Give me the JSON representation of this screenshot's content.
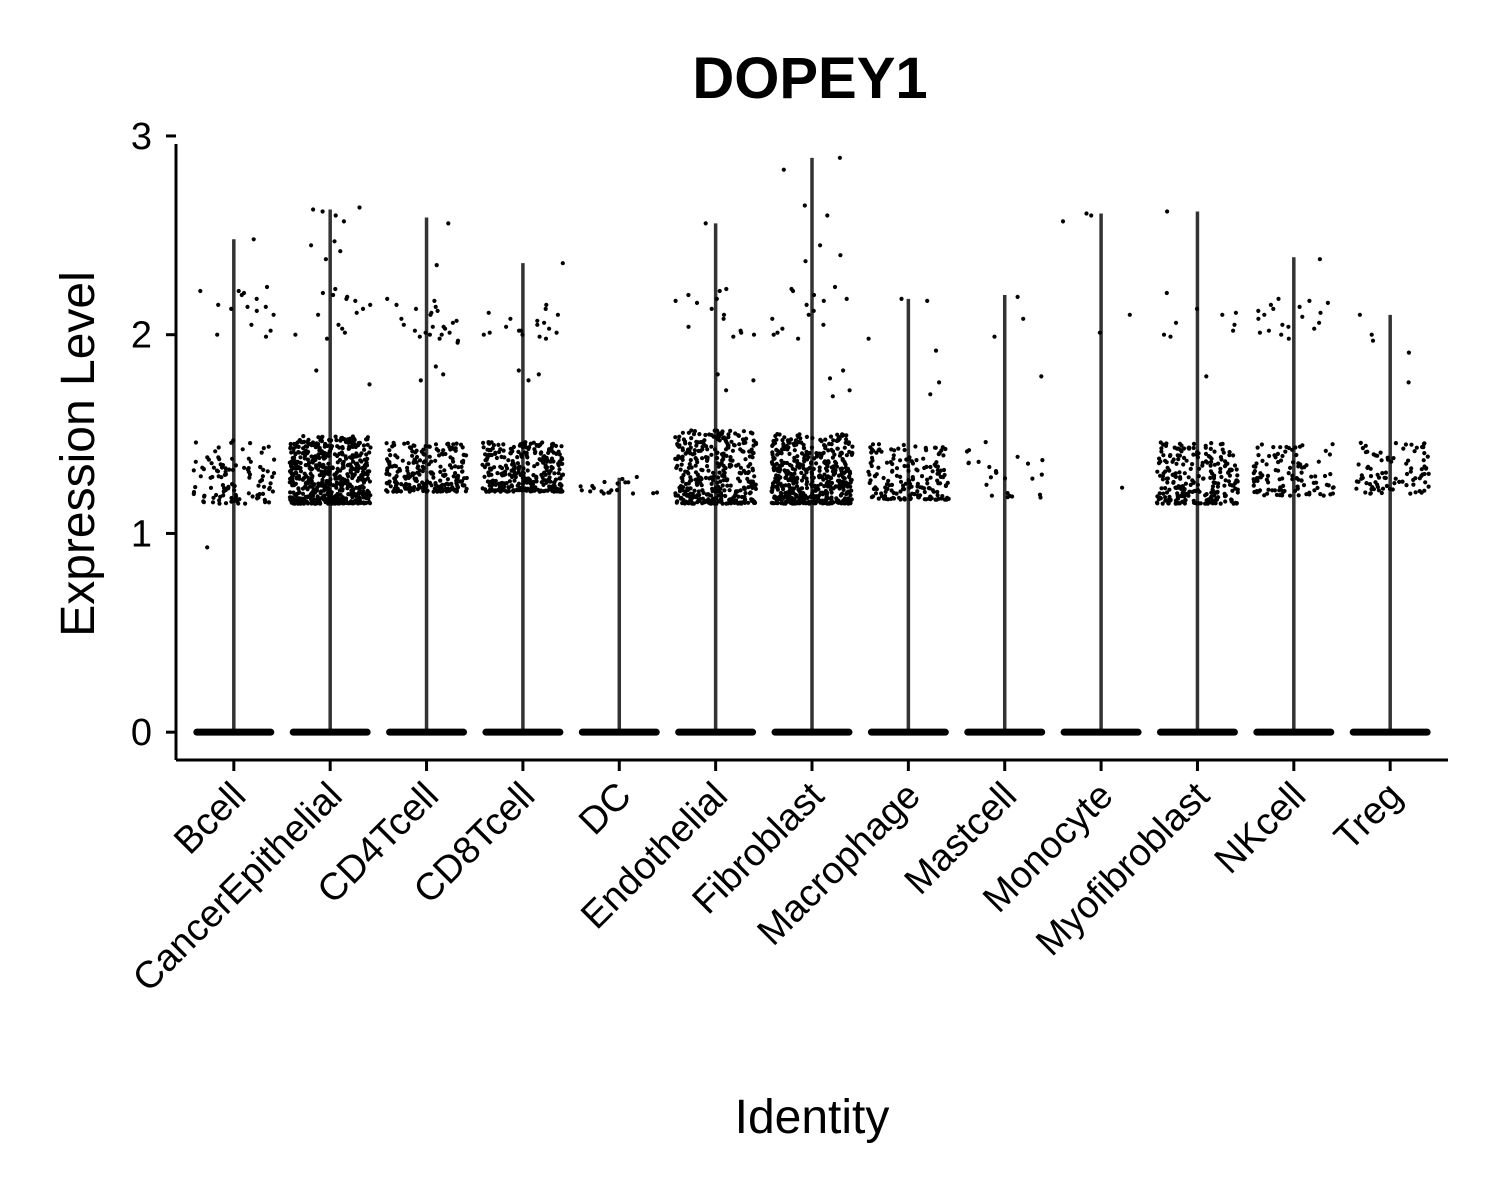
{
  "chart_data": {
    "type": "violin",
    "title": "DOPEY1",
    "xlabel": "Identity",
    "ylabel": "Expression Level",
    "ylim": [
      -0.14,
      3.03
    ],
    "yticks": [
      "0",
      "1",
      "2",
      "3"
    ],
    "grid": false,
    "legend": "none",
    "categories": [
      "Bcell",
      "CancerEpithelial",
      "CD4Tcell",
      "CD8Tcell",
      "DC",
      "Endothelial",
      "Fibroblast",
      "Macrophage",
      "Mastcell",
      "Monocyte",
      "Myofibroblast",
      "NKcell",
      "Treg"
    ],
    "max_values": [
      2.48,
      2.63,
      2.59,
      2.36,
      1.28,
      2.56,
      2.89,
      2.18,
      2.2,
      2.61,
      2.62,
      2.39,
      2.1
    ],
    "expressing_band": [
      {
        "lo": 1.15,
        "hi": 1.47,
        "n": 110
      },
      {
        "lo": 1.15,
        "hi": 1.49,
        "n": 600
      },
      {
        "lo": 1.21,
        "hi": 1.46,
        "n": 250
      },
      {
        "lo": 1.21,
        "hi": 1.46,
        "n": 320
      },
      {
        "lo": 1.2,
        "hi": 1.29,
        "n": 20
      },
      {
        "lo": 1.15,
        "hi": 1.52,
        "n": 380
      },
      {
        "lo": 1.15,
        "hi": 1.5,
        "n": 520
      },
      {
        "lo": 1.17,
        "hi": 1.45,
        "n": 170
      },
      {
        "lo": 1.18,
        "hi": 1.46,
        "n": 25
      },
      {
        "lo": 1.23,
        "hi": 1.23,
        "n": 1
      },
      {
        "lo": 1.15,
        "hi": 1.46,
        "n": 250
      },
      {
        "lo": 1.19,
        "hi": 1.45,
        "n": 110
      },
      {
        "lo": 1.2,
        "hi": 1.46,
        "n": 90
      }
    ],
    "high_points": [
      [
        0.93,
        1.99,
        2.0,
        2.02,
        2.05,
        2.1,
        2.12,
        2.13,
        2.14,
        2.14,
        2.15,
        2.18,
        2.2,
        2.21,
        2.22,
        2.22,
        2.24,
        2.48
      ],
      [
        1.75,
        1.82,
        1.98,
        2.0,
        2.01,
        2.03,
        2.05,
        2.1,
        2.11,
        2.13,
        2.15,
        2.17,
        2.18,
        2.19,
        2.2,
        2.21,
        2.23,
        2.38,
        2.42,
        2.45,
        2.47,
        2.57,
        2.6,
        2.62,
        2.63,
        2.64
      ],
      [
        1.77,
        1.8,
        1.84,
        1.96,
        1.97,
        1.98,
        1.99,
        2.0,
        2.0,
        2.01,
        2.01,
        2.02,
        2.03,
        2.04,
        2.04,
        2.05,
        2.06,
        2.07,
        2.08,
        2.1,
        2.11,
        2.12,
        2.13,
        2.14,
        2.15,
        2.17,
        2.18,
        2.35,
        2.56
      ],
      [
        1.77,
        1.8,
        1.82,
        1.98,
        1.99,
        2.0,
        2.0,
        2.01,
        2.01,
        2.02,
        2.02,
        2.03,
        2.04,
        2.05,
        2.06,
        2.07,
        2.08,
        2.1,
        2.11,
        2.13,
        2.15,
        2.36
      ],
      [],
      [
        1.72,
        1.77,
        1.8,
        1.99,
        2.0,
        2.01,
        2.02,
        2.04,
        2.08,
        2.1,
        2.13,
        2.16,
        2.17,
        2.18,
        2.2,
        2.22,
        2.23,
        2.56
      ],
      [
        1.69,
        1.72,
        1.78,
        1.82,
        1.98,
        2.0,
        2.01,
        2.03,
        2.05,
        2.08,
        2.1,
        2.12,
        2.15,
        2.17,
        2.18,
        2.2,
        2.22,
        2.23,
        2.24,
        2.37,
        2.4,
        2.45,
        2.6,
        2.65,
        2.83,
        2.89
      ],
      [
        1.7,
        1.76,
        1.92,
        1.98,
        2.17,
        2.18
      ],
      [
        1.79,
        1.99,
        2.08,
        2.19
      ],
      [
        2.01,
        2.1,
        2.57,
        2.6,
        2.61
      ],
      [
        1.79,
        1.99,
        2.0,
        2.02,
        2.05,
        2.06,
        2.1,
        2.11,
        2.13,
        2.21,
        2.62
      ],
      [
        1.98,
        2.0,
        2.01,
        2.02,
        2.03,
        2.04,
        2.05,
        2.06,
        2.08,
        2.09,
        2.1,
        2.11,
        2.12,
        2.13,
        2.14,
        2.15,
        2.16,
        2.17,
        2.18,
        2.38
      ],
      [
        1.76,
        1.91,
        1.97,
        2.0,
        2.1
      ]
    ]
  }
}
